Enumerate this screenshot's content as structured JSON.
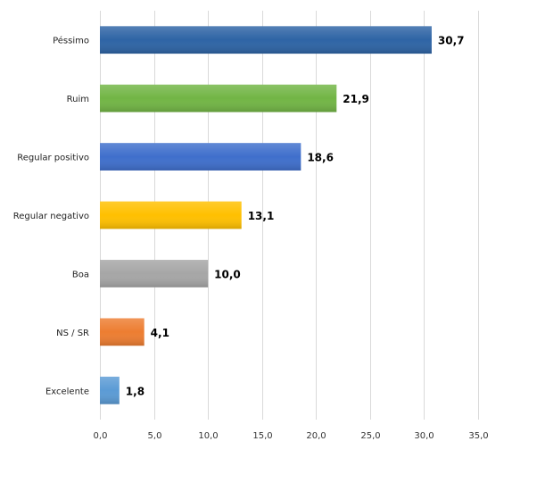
{
  "chart_data": {
    "type": "bar",
    "orientation": "horizontal",
    "categories": [
      "Péssimo",
      "Ruim",
      "Regular positivo",
      "Regular negativo",
      "Boa",
      "NS / SR",
      "Excelente"
    ],
    "values": [
      30.7,
      21.9,
      18.6,
      13.1,
      10.0,
      4.1,
      1.8
    ],
    "value_labels": [
      "30,7",
      "21,9",
      "18,6",
      "13,1",
      "10,0",
      "4,1",
      "1,8"
    ],
    "bar_colors": [
      "#2e64a5",
      "#72b545",
      "#3f6fcc",
      "#ffc000",
      "#a6a6a6",
      "#ed7d31",
      "#5b9bd5"
    ],
    "xlim": [
      0,
      35
    ],
    "x_ticks": [
      0,
      5,
      10,
      15,
      20,
      25,
      30,
      35
    ],
    "x_tick_labels": [
      "0,0",
      "5,0",
      "10,0",
      "15,0",
      "20,0",
      "25,0",
      "30,0",
      "35,0"
    ],
    "grid": true,
    "legend": "none",
    "title": "",
    "xlabel": "",
    "ylabel": ""
  }
}
